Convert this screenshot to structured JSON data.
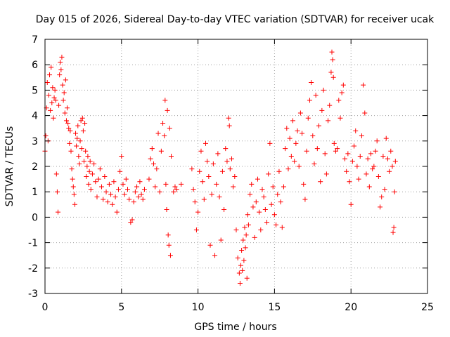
{
  "chart_data": {
    "type": "scatter",
    "title": "Day 015 of 2026, Sidereal Day-to-day VTEC variation (SDTVAR) for receiver ucak",
    "xlabel": "GPS time / hours",
    "ylabel": "SDTVAR / TECUs",
    "xlim": [
      0,
      25
    ],
    "ylim": [
      -3,
      7
    ],
    "xticks": [
      0,
      5,
      10,
      15,
      20,
      25
    ],
    "yticks": [
      -3,
      -2,
      -1,
      0,
      1,
      2,
      3,
      4,
      5,
      6,
      7
    ],
    "grid": true,
    "marker": "+",
    "series_color": "#ff0000",
    "series": [
      {
        "name": "SDTVAR",
        "points": [
          [
            0.0,
            2.6
          ],
          [
            0.05,
            3.2
          ],
          [
            0.1,
            4.3
          ],
          [
            0.15,
            5.3
          ],
          [
            0.2,
            3.0
          ],
          [
            0.25,
            4.8
          ],
          [
            0.3,
            5.6
          ],
          [
            0.35,
            4.2
          ],
          [
            0.4,
            5.9
          ],
          [
            0.45,
            4.5
          ],
          [
            0.5,
            5.1
          ],
          [
            0.55,
            3.9
          ],
          [
            0.6,
            4.7
          ],
          [
            0.65,
            5.0
          ],
          [
            0.7,
            4.6
          ],
          [
            0.75,
            1.7
          ],
          [
            0.8,
            1.0
          ],
          [
            0.85,
            0.2
          ],
          [
            0.9,
            4.4
          ],
          [
            0.95,
            5.6
          ],
          [
            1.0,
            6.1
          ],
          [
            1.05,
            5.8
          ],
          [
            1.1,
            6.3
          ],
          [
            1.15,
            5.2
          ],
          [
            1.2,
            4.6
          ],
          [
            1.25,
            4.9
          ],
          [
            1.3,
            4.1
          ],
          [
            1.35,
            5.4
          ],
          [
            1.4,
            3.8
          ],
          [
            1.45,
            4.3
          ],
          [
            1.5,
            3.7
          ],
          [
            1.55,
            3.5
          ],
          [
            1.6,
            2.9
          ],
          [
            1.65,
            3.4
          ],
          [
            1.7,
            2.6
          ],
          [
            1.75,
            1.9
          ],
          [
            1.8,
            1.5
          ],
          [
            1.85,
            1.2
          ],
          [
            1.9,
            0.9
          ],
          [
            1.95,
            0.5
          ],
          [
            2.0,
            3.3
          ],
          [
            2.05,
            2.8
          ],
          [
            2.1,
            3.1
          ],
          [
            2.15,
            3.6
          ],
          [
            2.2,
            2.4
          ],
          [
            2.25,
            2.1
          ],
          [
            2.3,
            3.0
          ],
          [
            2.35,
            3.8
          ],
          [
            2.4,
            2.7
          ],
          [
            2.45,
            3.9
          ],
          [
            2.5,
            3.4
          ],
          [
            2.55,
            2.2
          ],
          [
            2.6,
            3.7
          ],
          [
            2.65,
            2.6
          ],
          [
            2.7,
            1.6
          ],
          [
            2.75,
            2.0
          ],
          [
            2.8,
            2.4
          ],
          [
            2.85,
            1.3
          ],
          [
            2.9,
            1.8
          ],
          [
            2.95,
            2.2
          ],
          [
            3.0,
            1.1
          ],
          [
            3.1,
            1.7
          ],
          [
            3.2,
            2.1
          ],
          [
            3.3,
            1.4
          ],
          [
            3.4,
            0.8
          ],
          [
            3.5,
            1.5
          ],
          [
            3.6,
            1.9
          ],
          [
            3.7,
            1.2
          ],
          [
            3.8,
            0.7
          ],
          [
            3.9,
            1.6
          ],
          [
            4.0,
            1.0
          ],
          [
            4.1,
            0.6
          ],
          [
            4.2,
            1.3
          ],
          [
            4.3,
            0.9
          ],
          [
            4.4,
            0.5
          ],
          [
            4.5,
            1.4
          ],
          [
            4.6,
            0.8
          ],
          [
            4.7,
            0.2
          ],
          [
            4.8,
            1.1
          ],
          [
            4.9,
            1.8
          ],
          [
            5.0,
            2.4
          ],
          [
            5.1,
            1.3
          ],
          [
            5.2,
            0.9
          ],
          [
            5.3,
            1.5
          ],
          [
            5.4,
            1.1
          ],
          [
            5.5,
            0.7
          ],
          [
            5.6,
            -0.2
          ],
          [
            5.7,
            -0.1
          ],
          [
            5.8,
            0.6
          ],
          [
            5.9,
            1.0
          ],
          [
            6.0,
            1.2
          ],
          [
            6.1,
            0.8
          ],
          [
            6.2,
            1.4
          ],
          [
            6.3,
            0.9
          ],
          [
            6.4,
            0.7
          ],
          [
            6.5,
            1.1
          ],
          [
            6.8,
            1.5
          ],
          [
            6.9,
            2.3
          ],
          [
            7.0,
            2.7
          ],
          [
            7.1,
            2.1
          ],
          [
            7.2,
            1.2
          ],
          [
            7.3,
            1.9
          ],
          [
            7.4,
            3.3
          ],
          [
            7.5,
            1.0
          ],
          [
            7.6,
            2.6
          ],
          [
            7.7,
            3.7
          ],
          [
            7.8,
            3.2
          ],
          [
            7.85,
            4.6
          ],
          [
            7.9,
            1.3
          ],
          [
            7.95,
            0.3
          ],
          [
            8.0,
            4.2
          ],
          [
            8.05,
            -0.7
          ],
          [
            8.1,
            -1.1
          ],
          [
            8.15,
            3.5
          ],
          [
            8.2,
            -1.5
          ],
          [
            8.25,
            2.4
          ],
          [
            8.4,
            1.0
          ],
          [
            8.5,
            1.2
          ],
          [
            8.6,
            1.1
          ],
          [
            8.9,
            1.3
          ],
          [
            9.6,
            1.9
          ],
          [
            9.7,
            1.1
          ],
          [
            9.8,
            0.6
          ],
          [
            9.9,
            -0.5
          ],
          [
            10.0,
            0.2
          ],
          [
            10.1,
            1.8
          ],
          [
            10.2,
            2.6
          ],
          [
            10.3,
            1.4
          ],
          [
            10.4,
            0.7
          ],
          [
            10.5,
            2.9
          ],
          [
            10.6,
            2.2
          ],
          [
            10.7,
            1.6
          ],
          [
            10.8,
            -1.1
          ],
          [
            10.9,
            0.9
          ],
          [
            11.0,
            2.1
          ],
          [
            11.1,
            -1.5
          ],
          [
            11.2,
            1.3
          ],
          [
            11.3,
            2.5
          ],
          [
            11.4,
            0.8
          ],
          [
            11.5,
            -0.9
          ],
          [
            11.6,
            1.8
          ],
          [
            11.7,
            0.3
          ],
          [
            11.8,
            2.7
          ],
          [
            11.9,
            2.2
          ],
          [
            12.0,
            3.9
          ],
          [
            12.05,
            3.6
          ],
          [
            12.1,
            1.9
          ],
          [
            12.2,
            2.3
          ],
          [
            12.3,
            1.2
          ],
          [
            12.4,
            1.6
          ],
          [
            12.5,
            -0.5
          ],
          [
            12.6,
            -1.6
          ],
          [
            12.7,
            -2.2
          ],
          [
            12.75,
            -2.6
          ],
          [
            12.8,
            -1.9
          ],
          [
            12.85,
            -1.3
          ],
          [
            12.9,
            -2.1
          ],
          [
            12.95,
            -0.9
          ],
          [
            13.0,
            -1.7
          ],
          [
            13.05,
            -0.4
          ],
          [
            13.1,
            -1.2
          ],
          [
            13.15,
            -0.7
          ],
          [
            13.2,
            -2.4
          ],
          [
            13.25,
            0.1
          ],
          [
            13.3,
            -0.3
          ],
          [
            13.4,
            0.9
          ],
          [
            13.5,
            1.3
          ],
          [
            13.6,
            0.4
          ],
          [
            13.7,
            -0.8
          ],
          [
            13.8,
            0.6
          ],
          [
            13.9,
            1.5
          ],
          [
            14.0,
            0.2
          ],
          [
            14.1,
            -0.5
          ],
          [
            14.2,
            1.1
          ],
          [
            14.3,
            0.8
          ],
          [
            14.4,
            0.3
          ],
          [
            14.5,
            -0.2
          ],
          [
            14.6,
            1.7
          ],
          [
            14.7,
            2.9
          ],
          [
            14.8,
            0.5
          ],
          [
            14.9,
            1.2
          ],
          [
            15.0,
            0.1
          ],
          [
            15.1,
            -0.3
          ],
          [
            15.2,
            0.9
          ],
          [
            15.3,
            1.8
          ],
          [
            15.4,
            0.6
          ],
          [
            15.5,
            -0.4
          ],
          [
            15.6,
            1.2
          ],
          [
            15.7,
            2.7
          ],
          [
            15.8,
            3.5
          ],
          [
            15.9,
            1.9
          ],
          [
            16.0,
            3.1
          ],
          [
            16.1,
            2.4
          ],
          [
            16.2,
            3.8
          ],
          [
            16.3,
            2.2
          ],
          [
            16.4,
            2.9
          ],
          [
            16.5,
            3.4
          ],
          [
            16.6,
            2.0
          ],
          [
            16.7,
            4.1
          ],
          [
            16.8,
            3.3
          ],
          [
            16.9,
            1.3
          ],
          [
            17.0,
            0.7
          ],
          [
            17.1,
            2.6
          ],
          [
            17.2,
            3.9
          ],
          [
            17.3,
            4.6
          ],
          [
            17.4,
            5.3
          ],
          [
            17.5,
            3.2
          ],
          [
            17.6,
            2.1
          ],
          [
            17.7,
            4.8
          ],
          [
            17.8,
            2.7
          ],
          [
            17.9,
            3.6
          ],
          [
            18.0,
            1.4
          ],
          [
            18.1,
            4.2
          ],
          [
            18.2,
            5.0
          ],
          [
            18.3,
            2.5
          ],
          [
            18.4,
            1.7
          ],
          [
            18.5,
            3.8
          ],
          [
            18.6,
            4.4
          ],
          [
            18.7,
            5.7
          ],
          [
            18.75,
            6.5
          ],
          [
            18.8,
            6.2
          ],
          [
            18.85,
            5.5
          ],
          [
            18.9,
            2.9
          ],
          [
            19.0,
            2.6
          ],
          [
            19.1,
            2.7
          ],
          [
            19.2,
            4.6
          ],
          [
            19.3,
            3.9
          ],
          [
            19.4,
            4.9
          ],
          [
            19.5,
            5.2
          ],
          [
            19.6,
            2.3
          ],
          [
            19.7,
            1.8
          ],
          [
            19.8,
            2.5
          ],
          [
            19.9,
            1.4
          ],
          [
            20.0,
            0.5
          ],
          [
            20.1,
            2.2
          ],
          [
            20.2,
            2.8
          ],
          [
            20.3,
            3.4
          ],
          [
            20.4,
            2.0
          ],
          [
            20.5,
            1.5
          ],
          [
            20.6,
            2.4
          ],
          [
            20.7,
            3.2
          ],
          [
            20.8,
            5.2
          ],
          [
            20.9,
            4.1
          ],
          [
            21.0,
            1.7
          ],
          [
            21.1,
            2.3
          ],
          [
            21.2,
            1.2
          ],
          [
            21.3,
            2.5
          ],
          [
            21.4,
            1.9
          ],
          [
            21.5,
            2.0
          ],
          [
            21.6,
            2.6
          ],
          [
            21.7,
            3.0
          ],
          [
            21.8,
            1.6
          ],
          [
            21.9,
            0.4
          ],
          [
            22.0,
            0.8
          ],
          [
            22.1,
            2.4
          ],
          [
            22.2,
            1.1
          ],
          [
            22.3,
            3.1
          ],
          [
            22.4,
            2.3
          ],
          [
            22.5,
            1.8
          ],
          [
            22.6,
            2.6
          ],
          [
            22.7,
            2.0
          ],
          [
            22.75,
            -0.6
          ],
          [
            22.8,
            -0.4
          ],
          [
            22.85,
            1.0
          ],
          [
            22.9,
            2.2
          ]
        ]
      }
    ]
  }
}
